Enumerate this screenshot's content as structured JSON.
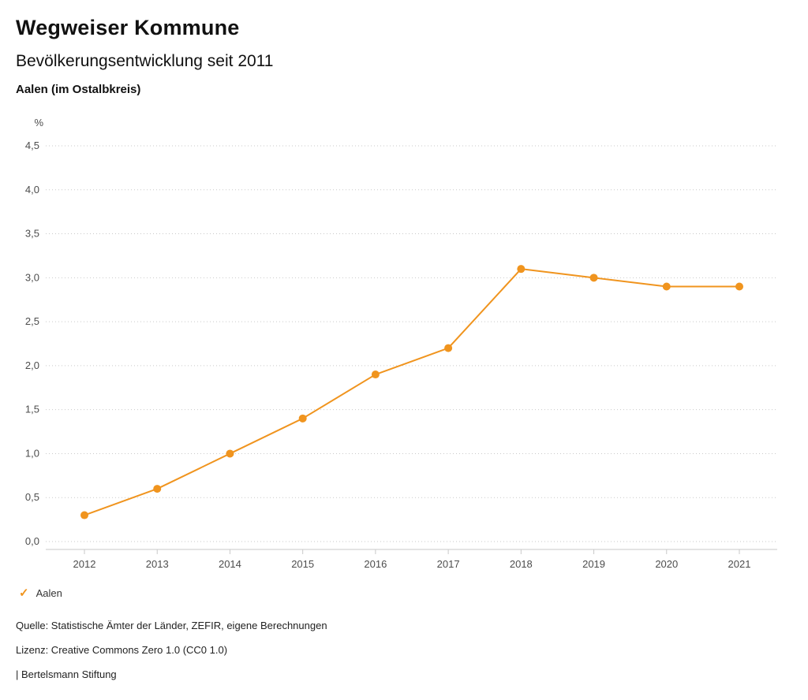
{
  "header": {
    "title": "Wegweiser Kommune",
    "subtitle": "Bevölkerungsentwicklung seit 2011",
    "region": "Aalen (im Ostalbkreis)"
  },
  "legend": {
    "check_icon": "✓",
    "label": "Aalen",
    "color": "#f0941e"
  },
  "footer": {
    "source": "Quelle: Statistische Ämter der Länder, ZEFIR, eigene Berechnungen",
    "license": "Lizenz: Creative Commons Zero 1.0 (CC0 1.0)",
    "attribution": "| Bertelsmann Stiftung"
  },
  "chart_data": {
    "type": "line",
    "title": "Bevölkerungsentwicklung seit 2011",
    "subtitle": "Aalen (im Ostalbkreis)",
    "unit": "%",
    "xlabel": "",
    "ylabel": "%",
    "x": [
      2012,
      2013,
      2014,
      2015,
      2016,
      2017,
      2018,
      2019,
      2020,
      2021
    ],
    "series": [
      {
        "name": "Aalen",
        "color": "#f0941e",
        "values": [
          0.3,
          0.6,
          1.0,
          1.4,
          1.9,
          2.2,
          3.1,
          3.0,
          2.9,
          2.9
        ]
      }
    ],
    "ylim": [
      0,
      4.5
    ],
    "ytick_step": 0.5,
    "decimal_separator": ",",
    "grid": "horizontal-dotted",
    "legend_position": "bottom-left"
  }
}
